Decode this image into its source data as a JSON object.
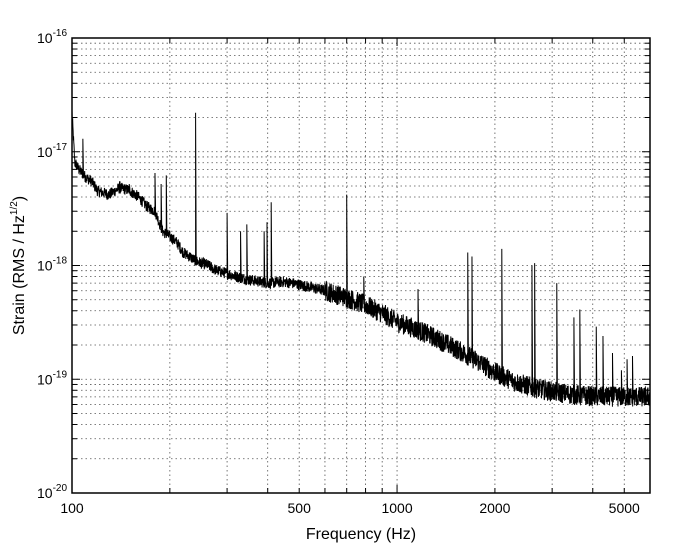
{
  "chart_data": {
    "type": "line",
    "xlabel": "Frequency (Hz)",
    "ylabel": "Strain (RMS / Hz^(1/2))",
    "ylabel_parts": {
      "main": "Strain (RMS / Hz",
      "exp": "1/2",
      "close": ")"
    },
    "x_scale": "log",
    "y_scale": "log",
    "xlim": [
      100,
      6000
    ],
    "ylim": [
      1e-20,
      1e-16
    ],
    "grid": true,
    "x_ticks": [
      {
        "value": 100,
        "label": "100"
      },
      {
        "value": 500,
        "label": "500"
      },
      {
        "value": 1000,
        "label": "1000"
      },
      {
        "value": 2000,
        "label": "2000"
      },
      {
        "value": 5000,
        "label": "5000"
      }
    ],
    "y_ticks": [
      {
        "value": 1e-20,
        "base": "10",
        "exp": "-20"
      },
      {
        "value": 1e-19,
        "base": "10",
        "exp": "-19"
      },
      {
        "value": 1e-18,
        "base": "10",
        "exp": "-18"
      },
      {
        "value": 1e-17,
        "base": "10",
        "exp": "-17"
      },
      {
        "value": 1e-16,
        "base": "10",
        "exp": "-16"
      }
    ],
    "series": [
      {
        "color": "#000000",
        "baseline": [
          [
            100,
            2.2e-17
          ],
          [
            102,
            8e-18
          ],
          [
            105,
            7e-18
          ],
          [
            110,
            6e-18
          ],
          [
            115,
            5.5e-18
          ],
          [
            120,
            4.5e-18
          ],
          [
            130,
            4.2e-18
          ],
          [
            140,
            4.8e-18
          ],
          [
            150,
            4.6e-18
          ],
          [
            160,
            4e-18
          ],
          [
            170,
            3.3e-18
          ],
          [
            180,
            3e-18
          ],
          [
            190,
            2e-18
          ],
          [
            200,
            1.8e-18
          ],
          [
            210,
            1.6e-18
          ],
          [
            220,
            1.3e-18
          ],
          [
            230,
            1.2e-18
          ],
          [
            240,
            1.1e-18
          ],
          [
            250,
            1.05e-18
          ],
          [
            260,
            1.02e-18
          ],
          [
            270,
            9.5e-19
          ],
          [
            280,
            9e-19
          ],
          [
            300,
            8.5e-19
          ],
          [
            320,
            8e-19
          ],
          [
            350,
            7.5e-19
          ],
          [
            380,
            7.2e-19
          ],
          [
            400,
            7e-19
          ],
          [
            450,
            7.2e-19
          ],
          [
            500,
            6.8e-19
          ],
          [
            600,
            6e-19
          ],
          [
            700,
            5.2e-19
          ],
          [
            800,
            4.5e-19
          ],
          [
            900,
            3.8e-19
          ],
          [
            1000,
            3.2e-19
          ],
          [
            1200,
            2.6e-19
          ],
          [
            1400,
            2.1e-19
          ],
          [
            1600,
            1.7e-19
          ],
          [
            1800,
            1.4e-19
          ],
          [
            2000,
            1.15e-19
          ],
          [
            2300,
            9.5e-20
          ],
          [
            2600,
            8.5e-20
          ],
          [
            3000,
            7.8e-20
          ],
          [
            3500,
            7.3e-20
          ],
          [
            4000,
            7.1e-20
          ],
          [
            5000,
            7e-20
          ],
          [
            6000,
            7e-20
          ]
        ],
        "peaks": [
          [
            108,
            1.3e-17
          ],
          [
            140,
            5.5e-18
          ],
          [
            150,
            5.2e-18
          ],
          [
            180,
            6.5e-18
          ],
          [
            188,
            5.2e-18
          ],
          [
            195,
            6.2e-18
          ],
          [
            240,
            2.2e-17
          ],
          [
            300,
            2.9e-18
          ],
          [
            330,
            2e-18
          ],
          [
            345,
            2.3e-18
          ],
          [
            390,
            2e-18
          ],
          [
            398,
            2.4e-18
          ],
          [
            410,
            3.6e-18
          ],
          [
            700,
            4.2e-18
          ],
          [
            790,
            8e-19
          ],
          [
            1160,
            6.2e-19
          ],
          [
            1650,
            1.3e-18
          ],
          [
            1700,
            1.2e-18
          ],
          [
            2100,
            1.4e-18
          ],
          [
            2600,
            1e-18
          ],
          [
            2650,
            1.05e-18
          ],
          [
            3100,
            7e-19
          ],
          [
            3500,
            3.5e-19
          ],
          [
            3650,
            4.1e-19
          ],
          [
            4100,
            2.9e-19
          ],
          [
            4300,
            2.4e-19
          ],
          [
            4600,
            1.7e-19
          ],
          [
            4900,
            1.2e-19
          ],
          [
            5100,
            1.5e-19
          ],
          [
            5300,
            1.6e-19
          ]
        ]
      }
    ]
  }
}
